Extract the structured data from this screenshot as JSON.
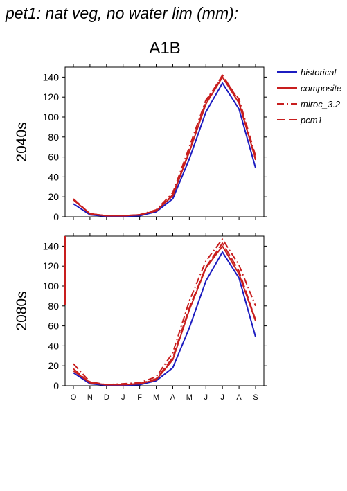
{
  "page_title": "pet1: nat veg, no water lim (mm):",
  "scenario_title": "A1B",
  "colors": {
    "historical": "#1c1cc0",
    "projection": "#c81e1e",
    "axis": "#000000"
  },
  "chart_data": [
    {
      "type": "line",
      "row_label": "2040s",
      "x": [
        "O",
        "N",
        "D",
        "J",
        "F",
        "M",
        "A",
        "M",
        "J",
        "J",
        "A",
        "S"
      ],
      "ylim": [
        0,
        150
      ],
      "yticks": [
        0,
        20,
        40,
        60,
        80,
        100,
        120,
        140
      ],
      "grid": false,
      "legend_placement": "right",
      "series": [
        {
          "name": "historical",
          "style": "solid",
          "color": "#1c1cc0",
          "values": [
            13,
            2,
            0.5,
            0.5,
            1,
            5,
            18,
            58,
            105,
            134,
            108,
            49
          ]
        },
        {
          "name": "composite",
          "style": "solid",
          "color": "#c81e1e",
          "values": [
            17,
            3,
            1,
            1,
            2,
            6,
            21,
            65,
            113,
            140,
            114,
            58
          ]
        },
        {
          "name": "miroc_3.2",
          "style": "dashdot",
          "color": "#c81e1e",
          "values": [
            17,
            3,
            1,
            1,
            2,
            7,
            24,
            70,
            117,
            140,
            118,
            61
          ]
        },
        {
          "name": "pcm1",
          "style": "dashed",
          "color": "#c81e1e",
          "values": [
            18,
            3,
            1,
            1,
            2,
            6,
            22,
            66,
            115,
            142,
            116,
            57
          ]
        }
      ]
    },
    {
      "type": "line",
      "row_label": "2080s",
      "x": [
        "O",
        "N",
        "D",
        "J",
        "F",
        "M",
        "A",
        "M",
        "J",
        "J",
        "A",
        "S"
      ],
      "ylim": [
        0,
        150
      ],
      "yticks": [
        0,
        20,
        40,
        60,
        80,
        100,
        120,
        140
      ],
      "grid": false,
      "series": [
        {
          "name": "historical",
          "style": "solid",
          "color": "#1c1cc0",
          "values": [
            13,
            2,
            0.5,
            0.5,
            1,
            5,
            18,
            58,
            105,
            134,
            108,
            49
          ]
        },
        {
          "name": "composite",
          "style": "solid",
          "color": "#c81e1e",
          "values": [
            15,
            3,
            1,
            1,
            2,
            6,
            26,
            76,
            118,
            140,
            112,
            65
          ]
        },
        {
          "name": "miroc_3.2",
          "style": "dashdot",
          "color": "#c81e1e",
          "values": [
            22,
            4,
            1,
            2,
            3,
            9,
            33,
            85,
            125,
            147,
            121,
            80
          ]
        },
        {
          "name": "pcm1",
          "style": "dashed",
          "color": "#c81e1e",
          "values": [
            17,
            3,
            1,
            1,
            2,
            7,
            28,
            78,
            119,
            143,
            115,
            66
          ]
        }
      ]
    }
  ],
  "legend": [
    {
      "name": "historical",
      "style": "solid",
      "color": "#1c1cc0"
    },
    {
      "name": "composite",
      "style": "solid",
      "color": "#c81e1e"
    },
    {
      "name": "miroc_3.2",
      "style": "dashdot",
      "color": "#c81e1e"
    },
    {
      "name": "pcm1",
      "style": "dashed",
      "color": "#c81e1e"
    }
  ]
}
